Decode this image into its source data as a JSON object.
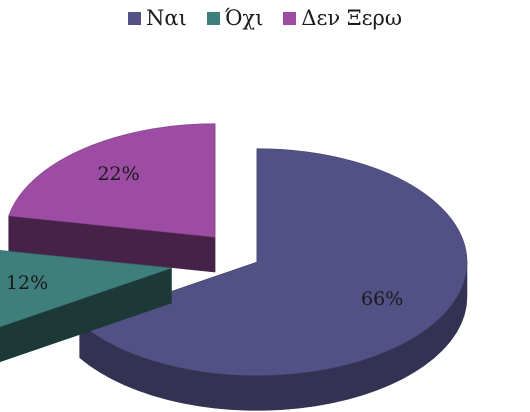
{
  "chart_data": {
    "type": "pie",
    "title": "",
    "categories": [
      "Ναι",
      "Όχι",
      "Δεν Ξερω"
    ],
    "values": [
      66,
      12,
      22
    ],
    "labels": [
      "66%",
      "12%",
      "22%"
    ],
    "colors": [
      "#525186",
      "#3e7e7c",
      "#9c4ca2"
    ],
    "legend_position": "top",
    "three_d": true,
    "exploded": true
  }
}
